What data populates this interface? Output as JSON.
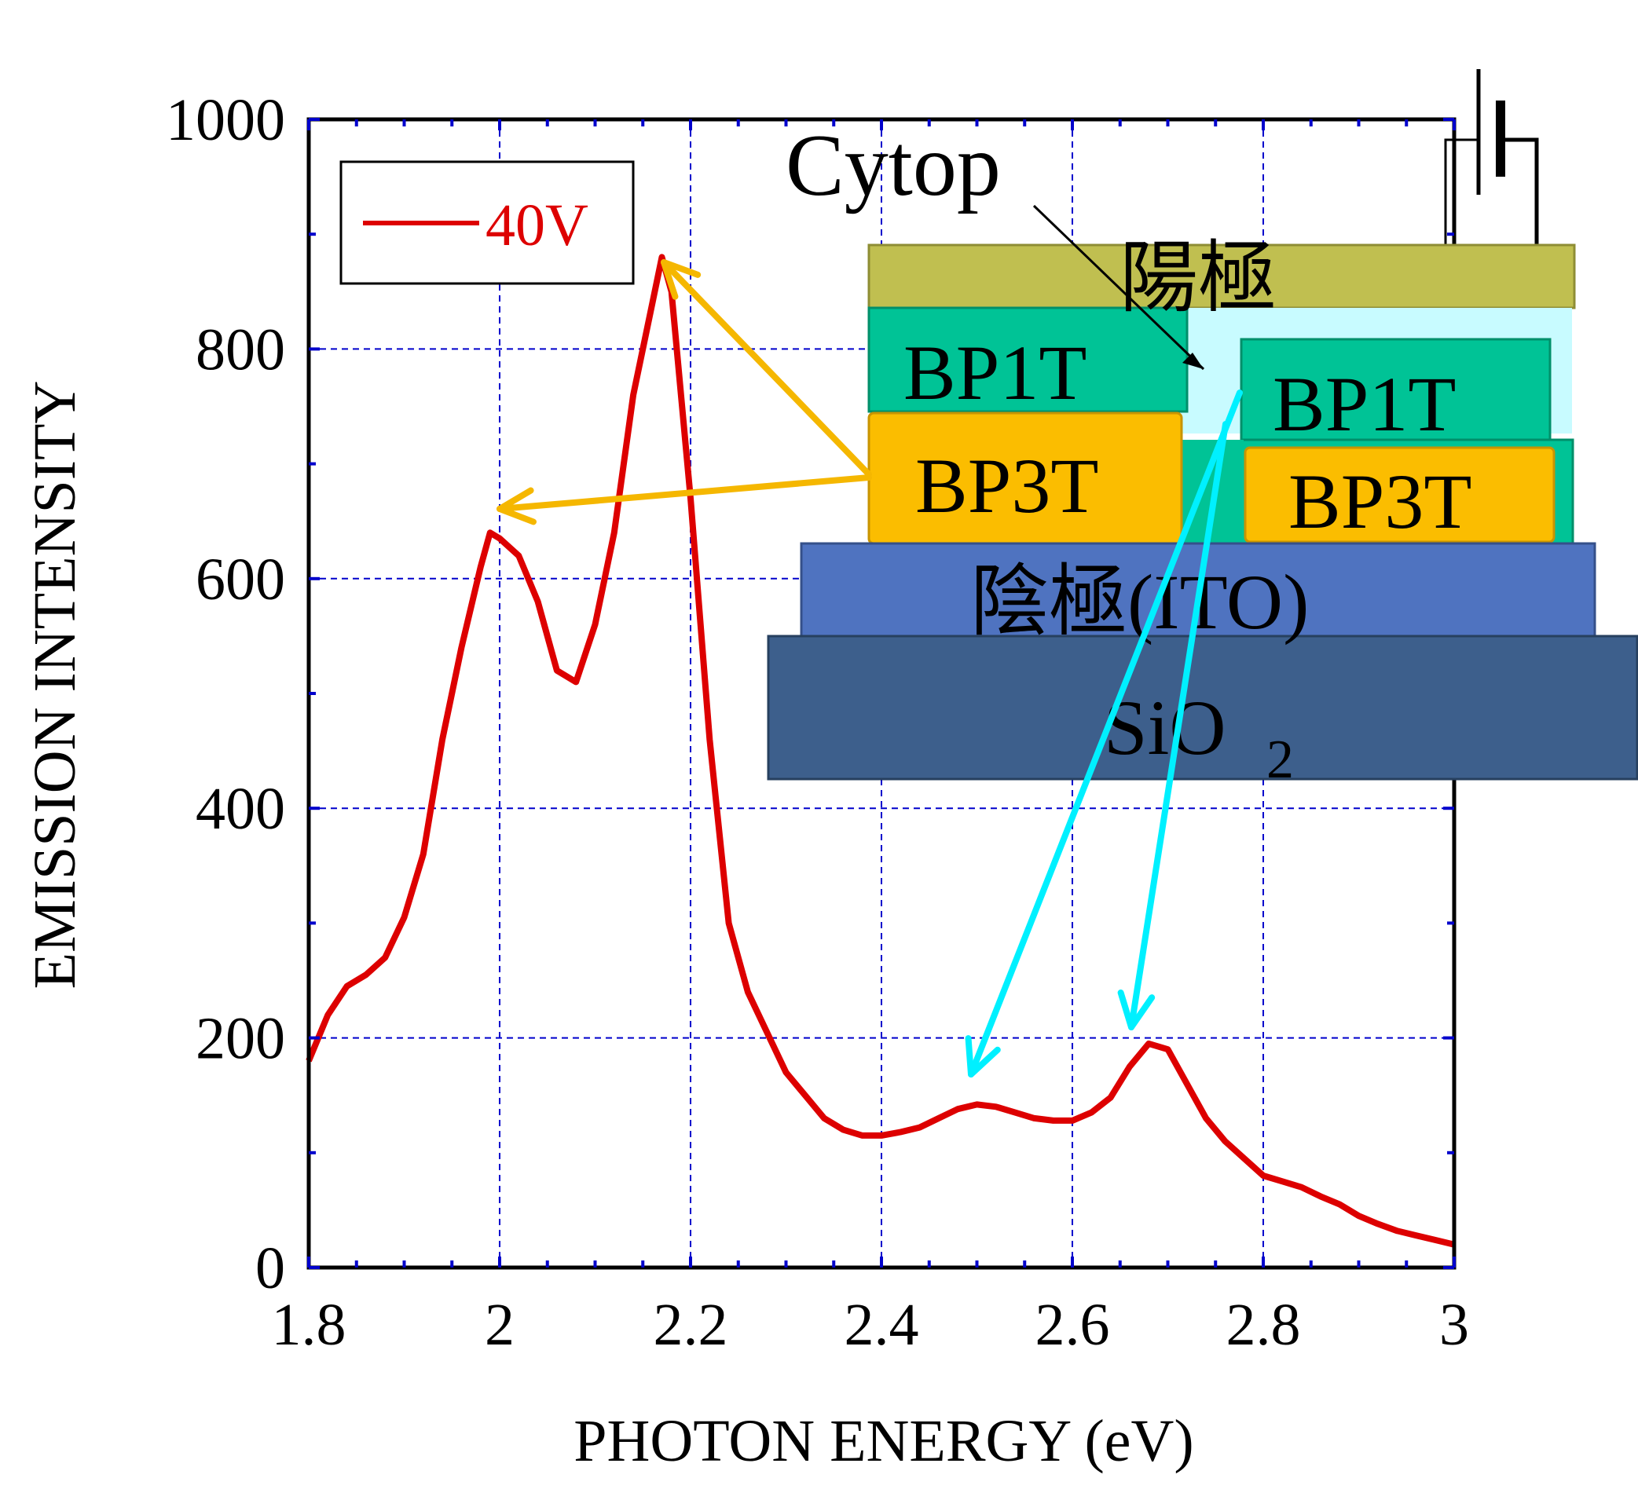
{
  "colors": {
    "series": "#dd0000",
    "grid": "#0000cc",
    "arrow_bp3t": "#f5b700",
    "arrow_bp1t": "#00f0ff",
    "anode": "#c0bf50",
    "bp1t": "#00c396",
    "bp3t": "#fbbd00",
    "cathode": "#4f73c0",
    "substrate": "#3d5f8c",
    "cytop": "#c8fbff"
  },
  "chart_data": {
    "type": "line",
    "title": "",
    "xlabel": "PHOTON ENERGY (eV)",
    "ylabel": "EMISSION INTENSITY",
    "xlim": [
      1.8,
      3.0
    ],
    "ylim": [
      0,
      1000
    ],
    "xticks": [
      1.8,
      2.0,
      2.2,
      2.4,
      2.6,
      2.8,
      3.0
    ],
    "xtick_labels": [
      "1.8",
      "2",
      "2.2",
      "2.4",
      "2.6",
      "2.8",
      "3"
    ],
    "yticks": [
      0,
      200,
      400,
      600,
      800,
      1000
    ],
    "ytick_labels": [
      "0",
      "200",
      "400",
      "600",
      "800",
      "1000"
    ],
    "grid": true,
    "legend_position": "top-left",
    "series": [
      {
        "name": "40V",
        "x": [
          1.8,
          1.82,
          1.84,
          1.86,
          1.88,
          1.9,
          1.92,
          1.94,
          1.96,
          1.98,
          1.99,
          2.0,
          2.02,
          2.04,
          2.06,
          2.08,
          2.1,
          2.12,
          2.14,
          2.16,
          2.17,
          2.18,
          2.2,
          2.22,
          2.24,
          2.26,
          2.28,
          2.3,
          2.32,
          2.34,
          2.36,
          2.38,
          2.4,
          2.42,
          2.44,
          2.46,
          2.48,
          2.5,
          2.52,
          2.54,
          2.56,
          2.58,
          2.6,
          2.62,
          2.64,
          2.66,
          2.68,
          2.7,
          2.72,
          2.74,
          2.76,
          2.78,
          2.8,
          2.82,
          2.84,
          2.86,
          2.88,
          2.9,
          2.92,
          2.94,
          2.96,
          2.98,
          3.0
        ],
        "y": [
          180,
          220,
          245,
          255,
          270,
          305,
          360,
          460,
          540,
          610,
          640,
          635,
          620,
          580,
          520,
          510,
          560,
          640,
          760,
          840,
          880,
          850,
          670,
          460,
          300,
          240,
          205,
          170,
          150,
          130,
          120,
          115,
          115,
          118,
          122,
          130,
          138,
          142,
          140,
          135,
          130,
          128,
          128,
          135,
          148,
          175,
          195,
          190,
          160,
          130,
          110,
          95,
          80,
          75,
          70,
          62,
          55,
          45,
          38,
          32,
          28,
          24,
          20
        ]
      }
    ],
    "annotations": {
      "legend_label": "40V",
      "cytop": "Cytop",
      "anode": "陽極",
      "bp1t_left": "BP1T",
      "bp1t_right": "BP1T",
      "bp3t_left": "BP3T",
      "bp3t_right": "BP3T",
      "cathode": "陰極(ITO)",
      "substrate": "SiO",
      "substrate_subscript": "2"
    }
  }
}
